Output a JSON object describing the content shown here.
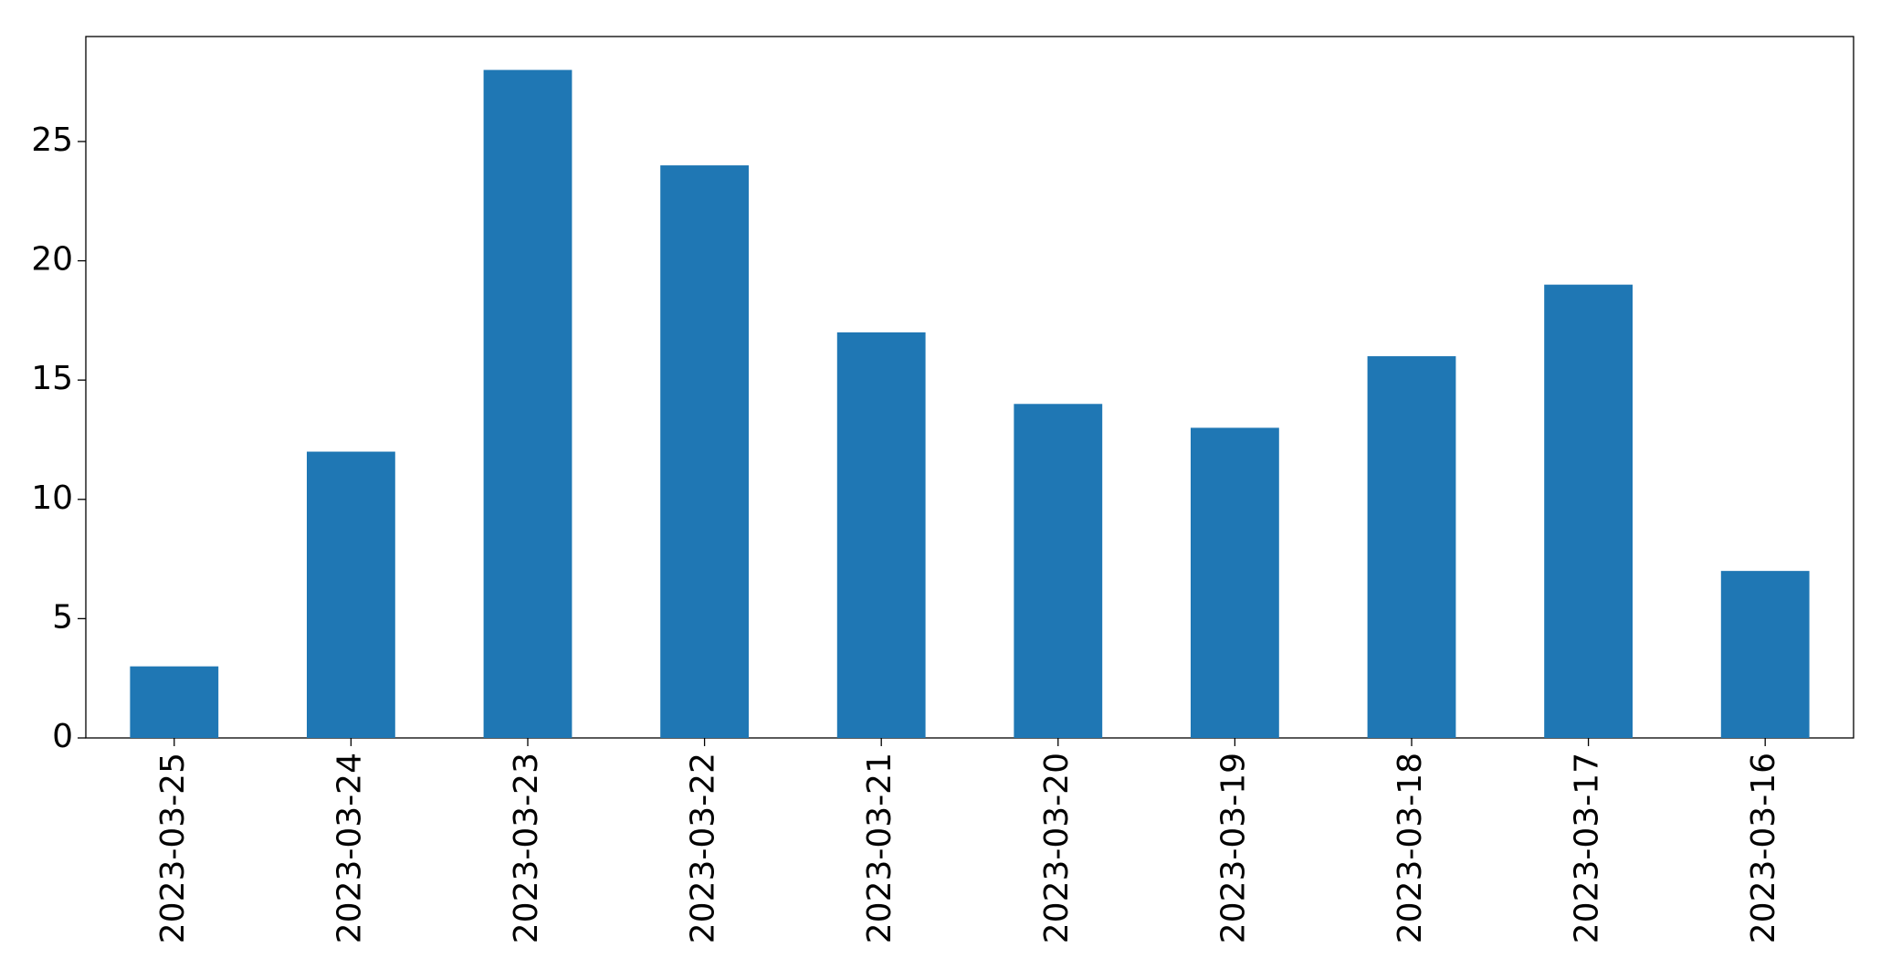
{
  "chart_data": {
    "type": "bar",
    "categories": [
      "2023-03-25",
      "2023-03-24",
      "2023-03-23",
      "2023-03-22",
      "2023-03-21",
      "2023-03-20",
      "2023-03-19",
      "2023-03-18",
      "2023-03-17",
      "2023-03-16"
    ],
    "values": [
      3,
      12,
      28,
      24,
      17,
      14,
      13,
      16,
      19,
      7
    ],
    "color": "#1f77b4",
    "ylim": [
      0,
      29.4
    ],
    "yticks": [
      0,
      5,
      10,
      15,
      20,
      25
    ],
    "grid": false
  }
}
